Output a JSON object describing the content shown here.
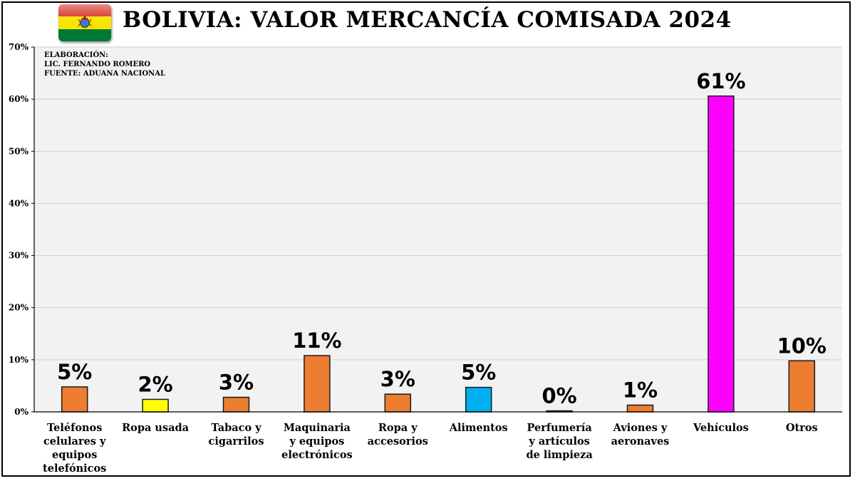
{
  "title": "BOLIVIA: VALOR MERCANCÍA COMISADA 2024",
  "source_notes": [
    "ELABORACIÓN:",
    "LIC. FERNANDO ROMERO",
    "FUENTE: ADUANA NACIONAL"
  ],
  "flag": {
    "icon": "bolivia-flag-icon",
    "colors": [
      "#d52b1e",
      "#f9e300",
      "#007934"
    ]
  },
  "chart_data": {
    "type": "bar",
    "categories": [
      [
        "Teléfonos",
        "celulares y",
        "equipos",
        "telefónicos"
      ],
      [
        "Ropa usada"
      ],
      [
        "Tabaco y",
        "cigarrilos"
      ],
      [
        "Maquinaria",
        "y equipos",
        "electrónicos"
      ],
      [
        "Ropa y",
        "accesorios"
      ],
      [
        "Alimentos"
      ],
      [
        "Perfumería",
        "y artículos",
        "de limpieza"
      ],
      [
        "Aviones y",
        "aeronaves"
      ],
      [
        "Vehículos"
      ],
      [
        "Otros"
      ]
    ],
    "values": [
      4.8,
      2.4,
      2.8,
      10.8,
      3.4,
      4.7,
      0.2,
      1.3,
      60.6,
      9.8
    ],
    "data_labels": [
      "5%",
      "2%",
      "3%",
      "11%",
      "3%",
      "5%",
      "0%",
      "1%",
      "61%",
      "10%"
    ],
    "bar_colors": [
      "#ed7d31",
      "#ffff00",
      "#ed7d31",
      "#ed7d31",
      "#ed7d31",
      "#00b0f0",
      "#ed7d31",
      "#ed7d31",
      "#ff00ff",
      "#ed7d31"
    ],
    "yticks": [
      0,
      10,
      20,
      30,
      40,
      50,
      60,
      70
    ],
    "ytick_labels": [
      "0%",
      "10%",
      "20%",
      "30%",
      "40%",
      "50%",
      "60%",
      "70%"
    ],
    "ylim": [
      0,
      70
    ],
    "grid": true,
    "plot_background": "#f2f2f2"
  }
}
